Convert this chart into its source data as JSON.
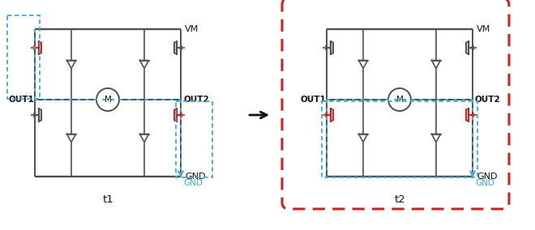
{
  "fig_width": 6.6,
  "fig_height": 2.84,
  "dpi": 100,
  "bg_color": "#ffffff",
  "gray": "#505050",
  "red": "#cc2222",
  "blue": "#44aacc",
  "dark": "#111111",
  "t1_label": "t1",
  "t2_label": "t2",
  "vm_label": "VM",
  "gnd_label": "GND",
  "out1_label": "OUT1",
  "out2_label": "OUT2",
  "motor_label": "M",
  "arrow_label": "→"
}
